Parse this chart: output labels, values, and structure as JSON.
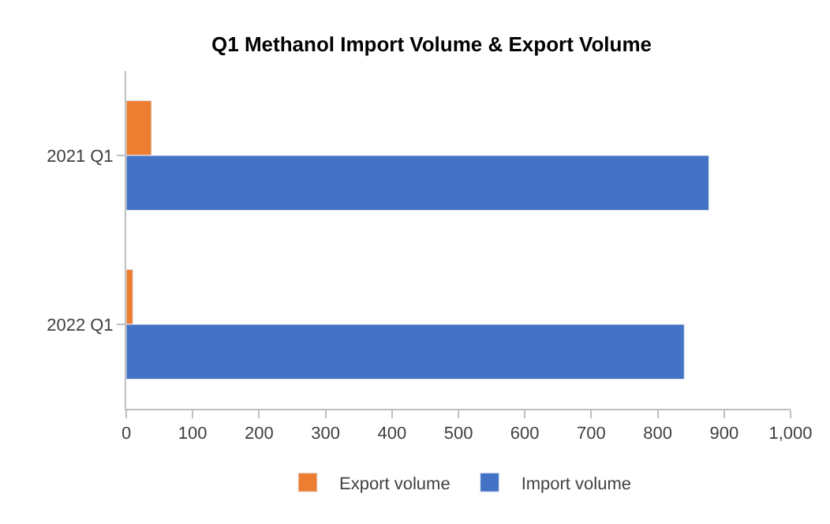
{
  "chart_data": {
    "type": "bar",
    "orientation": "horizontal",
    "title": "Q1 Methanol Import Volume & Export Volume",
    "categories": [
      "2021 Q1",
      "2022 Q1"
    ],
    "series": [
      {
        "name": "Export volume",
        "color": "#ed7d31",
        "values": [
          38,
          10
        ]
      },
      {
        "name": "Import volume",
        "color": "#4472c4",
        "values": [
          877,
          840
        ]
      }
    ],
    "xlim": [
      0,
      1000
    ],
    "xticks": [
      0,
      100,
      200,
      300,
      400,
      500,
      600,
      700,
      800,
      900,
      {
        "value": 1000,
        "label": "1,000"
      }
    ],
    "legend": "bottom"
  }
}
